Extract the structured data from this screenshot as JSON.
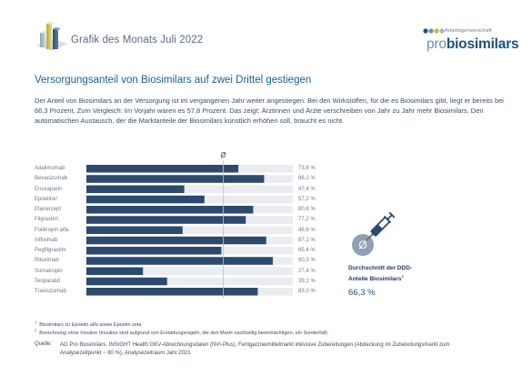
{
  "header": {
    "title": "Grafik des Monats Juli 2022",
    "brand_small": "Arbeitsgemeinschaft",
    "brand_prefix": "pro",
    "brand_main": "biosimilars"
  },
  "headline": "Versorgungsanteil von Biosimilars auf zwei Drittel gestiegen",
  "intro": "Der Anteil von Biosimilars an der Versorgung ist im vergangenen Jahr weiter angestiegen. Bei den Wirkstoffen, für die es Biosimilars gibt, liegt er bereits bei 66,3 Prozent. Zum Vergleich: Im Vorjahr waren es 57,8 Prozent. Das zeigt: Ärztinnen und Ärzte verschreiben von Jahr zu Jahr mehr Biosimilars. Den automatischen Austausch, der die Marktanteile der Biosimilars künstlich erhöhen soll, braucht es nicht.",
  "chart_data": {
    "type": "bar",
    "orientation": "horizontal",
    "categories": [
      "Adalimumab",
      "Bevacizumab",
      "Enoxaparin",
      "Epoetine¹",
      "Etanercept",
      "Filgrastim",
      "Follitropin alfa",
      "Infliximab",
      "Pegfilgrastim",
      "Rituximab",
      "Somatropin",
      "Teriparatid",
      "Trastuzumab"
    ],
    "values": [
      73.6,
      86.1,
      47.4,
      57.2,
      80.8,
      77.2,
      46.6,
      87.1,
      65.4,
      90.3,
      27.4,
      39.1,
      83.0
    ],
    "value_labels": [
      "73,6 %",
      "86,1 %",
      "47,4 %",
      "57,2 %",
      "80,8 %",
      "77,2 %",
      "46,6 %",
      "87,1 %",
      "65,4 %",
      "90,3 %",
      "27,4 %",
      "39,1 %",
      "83,0 %"
    ],
    "xlim": [
      0,
      100
    ],
    "average_symbol": "Ø",
    "average": 66.3,
    "colors": {
      "bar": "#2d4a6e",
      "track": "#eaecef",
      "average_line": "#b9c2cc"
    }
  },
  "average_box": {
    "title": "Durchschnitt der DDD-Anteile Biosimilars",
    "title_sup": "2",
    "value": "66,3 %",
    "symbol": "Ø"
  },
  "footnotes": [
    {
      "num": "1",
      "text": "Biosimilars zu Epoetin alfa sowie Epoetin zeta"
    },
    {
      "num": "2",
      "text": "Berechnung ohne Insuline (Insuline sind aufgrund von Erstattungsregeln, die den Markt nachhaltig beeinträchtigen, ein Sonderfall)"
    }
  ],
  "source": {
    "label": "Quelle:",
    "text": "AG Pro Biosimilars, INSIGHT Health GKV-Abrechnungsdaten (NVI-Plus), Fertigarzneimittelmarkt inklusive Zubereitungen (Abdeckung im Zubereitungsmarkt zum Analysezeitpunkt ~ 80 %), Analysezeitraum Jahr 2021"
  }
}
